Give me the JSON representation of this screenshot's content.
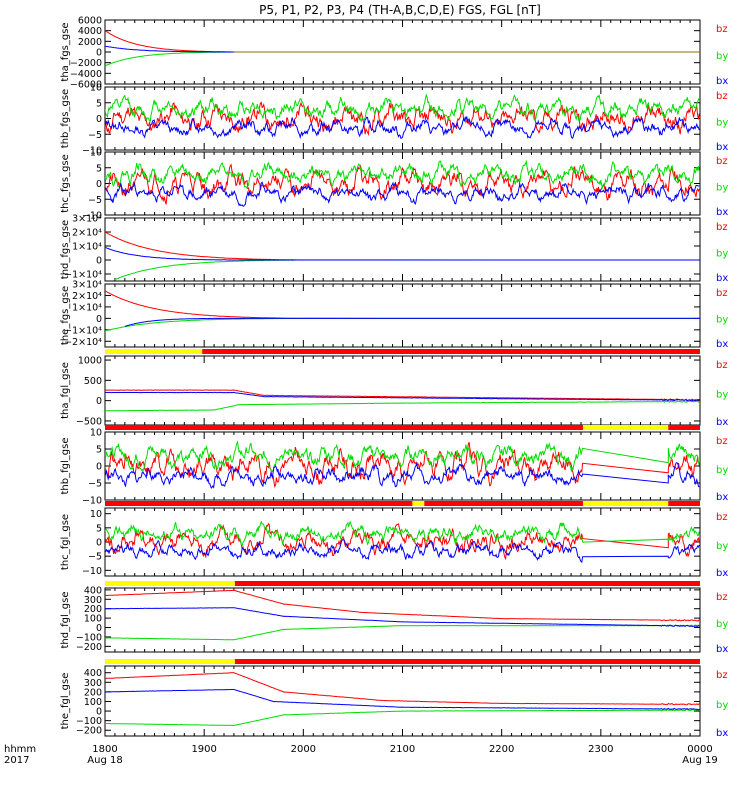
{
  "title": "P5, P1, P2, P3, P4 (TH-A,B,C,D,E) FGS, FGL [nT]",
  "footer": {
    "label_top": "hhmm",
    "label_bottom": "2017",
    "ticks": [
      {
        "t": 0,
        "top": "1800",
        "bottom": "Aug 18"
      },
      {
        "t": 100,
        "top": "1900",
        "bottom": ""
      },
      {
        "t": 200,
        "top": "2000",
        "bottom": ""
      },
      {
        "t": 300,
        "top": "2100",
        "bottom": ""
      },
      {
        "t": 400,
        "top": "2200",
        "bottom": ""
      },
      {
        "t": 500,
        "top": "2300",
        "bottom": ""
      },
      {
        "t": 600,
        "top": "0000",
        "bottom": "Aug 19"
      }
    ]
  },
  "colors": {
    "bx": "#0000ff",
    "by": "#00dd00",
    "bz": "#ff0000",
    "flag_yellow": "#ffff00",
    "flag_red": "#ff0000"
  },
  "legend": [
    "bz",
    "by",
    "bx"
  ],
  "chart_data": [
    {
      "type": "line",
      "id": "tha_fgs_gse",
      "ylabel": "tha_fgs_gse",
      "ylim": [
        -6000,
        6000
      ],
      "ticks": [
        {
          "v": 6000,
          "t": "6000"
        },
        {
          "v": 4000,
          "t": "4000"
        },
        {
          "v": 2000,
          "t": "2000"
        },
        {
          "v": 0,
          "t": "0"
        },
        {
          "v": -2000,
          "t": "−2000"
        },
        {
          "v": -4000,
          "t": "−4000"
        },
        {
          "v": -6000,
          "t": "−6000"
        }
      ],
      "x_range": [
        0,
        600
      ],
      "series": [
        {
          "name": "bz",
          "kind": "decay",
          "x0": 0,
          "x1": 130,
          "start": 4000,
          "end": 0,
          "noise": 20
        },
        {
          "name": "by",
          "kind": "decay",
          "x0": 0,
          "x1": 130,
          "start": -2600,
          "end": 0,
          "noise": 20
        },
        {
          "name": "bx",
          "kind": "decay",
          "x0": 0,
          "x1": 130,
          "start": 1100,
          "end": 0,
          "noise": 20
        },
        {
          "name": "flat",
          "kind": "flat",
          "x0": 130,
          "x1": 600,
          "value": 0
        }
      ]
    },
    {
      "type": "line",
      "id": "thb_fgs_gse",
      "ylabel": "thb_fgs_gse",
      "ylim": [
        -10,
        10
      ],
      "ticks": [
        {
          "v": 10,
          "t": "10"
        },
        {
          "v": 5,
          "t": "5"
        },
        {
          "v": 0,
          "t": "0"
        },
        {
          "v": -5,
          "t": "−5"
        },
        {
          "v": -10,
          "t": "−10"
        }
      ],
      "x_range": [
        0,
        600
      ],
      "series": [
        {
          "name": "bz",
          "kind": "noise",
          "mean": 0,
          "amp": 4,
          "seed": 11
        },
        {
          "name": "by",
          "kind": "noise",
          "mean": 3,
          "amp": 3,
          "seed": 12
        },
        {
          "name": "bx",
          "kind": "noise",
          "mean": -3,
          "amp": 2.5,
          "seed": 13
        }
      ]
    },
    {
      "type": "line",
      "id": "thc_fgs_gse",
      "ylabel": "thc_fgs_gse",
      "ylim": [
        -10,
        10
      ],
      "ticks": [
        {
          "v": 10,
          "t": "10"
        },
        {
          "v": 5,
          "t": "5"
        },
        {
          "v": 0,
          "t": "0"
        },
        {
          "v": -5,
          "t": "−5"
        },
        {
          "v": -10,
          "t": "−10"
        }
      ],
      "x_range": [
        0,
        600
      ],
      "series": [
        {
          "name": "bz",
          "kind": "noise",
          "mean": 0,
          "amp": 4,
          "seed": 21
        },
        {
          "name": "by",
          "kind": "noise",
          "mean": 3,
          "amp": 3,
          "seed": 22
        },
        {
          "name": "bx",
          "kind": "noise",
          "mean": -3,
          "amp": 2.5,
          "seed": 23
        }
      ]
    },
    {
      "type": "line",
      "id": "thd_fgs_gse",
      "ylabel": "thd_fgs_gse",
      "ylim": [
        -15000,
        30000
      ],
      "ticks": [
        {
          "v": 30000,
          "t": "3×10⁴"
        },
        {
          "v": 20000,
          "t": "2×10⁴"
        },
        {
          "v": 10000,
          "t": "1×10⁴"
        },
        {
          "v": 0,
          "t": "0"
        },
        {
          "v": -10000,
          "t": "−1×10⁴"
        }
      ],
      "x_range": [
        0,
        600
      ],
      "series": [
        {
          "name": "bz",
          "kind": "decay",
          "x0": 0,
          "x1": 200,
          "start": 20000,
          "end": 0,
          "noise": 150
        },
        {
          "name": "by",
          "kind": "decay",
          "x0": 10,
          "x1": 200,
          "start": -14000,
          "end": 0,
          "noise": 150
        },
        {
          "name": "bx",
          "kind": "decay",
          "x0": 0,
          "x1": 130,
          "start": 9000,
          "end": 0,
          "noise": 150
        }
      ]
    },
    {
      "type": "line",
      "id": "the_fgs_gse",
      "ylabel": "the_fgs_gse",
      "ylim": [
        -25000,
        30000
      ],
      "ticks": [
        {
          "v": 30000,
          "t": "3×10⁴"
        },
        {
          "v": 20000,
          "t": "2×10⁴"
        },
        {
          "v": 10000,
          "t": "1×10⁴"
        },
        {
          "v": 0,
          "t": "0"
        },
        {
          "v": -10000,
          "t": "−1×10⁴"
        },
        {
          "v": -20000,
          "t": "−2×10⁴"
        }
      ],
      "x_range": [
        0,
        600
      ],
      "series": [
        {
          "name": "bz",
          "kind": "decay",
          "x0": 0,
          "x1": 200,
          "start": 24000,
          "end": 0,
          "noise": 150
        },
        {
          "name": "by",
          "kind": "decay",
          "x0": 0,
          "x1": 200,
          "start": -11000,
          "end": 0,
          "noise": 150
        },
        {
          "name": "bx",
          "kind": "decay",
          "x0": 20,
          "x1": 120,
          "start": -7000,
          "end": 0,
          "noise": 150
        }
      ]
    },
    {
      "type": "line",
      "id": "tha_fgl_gse",
      "ylabel": "tha_fgl_gse",
      "ylim": [
        -600,
        1100
      ],
      "ticks": [
        {
          "v": 1000,
          "t": "1000"
        },
        {
          "v": 500,
          "t": "500"
        },
        {
          "v": 0,
          "t": "0"
        },
        {
          "v": -500,
          "t": "−500"
        }
      ],
      "x_range": [
        0,
        600
      ],
      "flag": [
        {
          "x0": 0,
          "x1": 98,
          "c": "yellow"
        },
        {
          "x0": 98,
          "x1": 600,
          "c": "red"
        }
      ],
      "series": [
        {
          "name": "bz",
          "kind": "step",
          "points": [
            [
              0,
              260
            ],
            [
              130,
              260
            ],
            [
              160,
              130
            ],
            [
              440,
              60
            ],
            [
              600,
              20
            ]
          ],
          "noise": 6
        },
        {
          "name": "by",
          "kind": "step",
          "points": [
            [
              0,
              -250
            ],
            [
              110,
              -230
            ],
            [
              135,
              -100
            ],
            [
              300,
              -60
            ],
            [
              600,
              -20
            ]
          ],
          "noise": 6
        },
        {
          "name": "bx",
          "kind": "step",
          "points": [
            [
              0,
              200
            ],
            [
              130,
              200
            ],
            [
              160,
              100
            ],
            [
              440,
              40
            ],
            [
              600,
              10
            ]
          ],
          "noise": 6
        }
      ]
    },
    {
      "type": "line",
      "id": "thb_fgl_gse",
      "ylabel": "thb_fgl_gse",
      "ylim": [
        -10,
        10
      ],
      "ticks": [
        {
          "v": 10,
          "t": "10"
        },
        {
          "v": 5,
          "t": "5"
        },
        {
          "v": 0,
          "t": "0"
        },
        {
          "v": -5,
          "t": "−5"
        },
        {
          "v": -10,
          "t": "−10"
        }
      ],
      "x_range": [
        0,
        600
      ],
      "flag": [
        {
          "x0": 0,
          "x1": 482,
          "c": "red"
        },
        {
          "x0": 482,
          "x1": 568,
          "c": "yellow"
        },
        {
          "x0": 568,
          "x1": 600,
          "c": "red"
        }
      ],
      "series": [
        {
          "name": "bz",
          "kind": "noise",
          "mean": 0,
          "amp": 4,
          "seed": 31,
          "gap": [
            482,
            568
          ]
        },
        {
          "name": "by",
          "kind": "noise",
          "mean": 3,
          "amp": 3,
          "seed": 32,
          "gap": [
            482,
            568
          ]
        },
        {
          "name": "bx",
          "kind": "noise",
          "mean": -3,
          "amp": 2.5,
          "seed": 33,
          "gap": [
            482,
            568
          ]
        }
      ]
    },
    {
      "type": "line",
      "id": "thc_fgl_gse",
      "ylabel": "thc_fgl_gse",
      "ylim": [
        -12,
        12
      ],
      "ticks": [
        {
          "v": 10,
          "t": "10"
        },
        {
          "v": 5,
          "t": "5"
        },
        {
          "v": 0,
          "t": "0"
        },
        {
          "v": -5,
          "t": "−5"
        },
        {
          "v": -10,
          "t": "−10"
        }
      ],
      "x_range": [
        0,
        600
      ],
      "flag": [
        {
          "x0": 0,
          "x1": 310,
          "c": "red"
        },
        {
          "x0": 310,
          "x1": 322,
          "c": "yellow"
        },
        {
          "x0": 322,
          "x1": 482,
          "c": "red"
        },
        {
          "x0": 482,
          "x1": 568,
          "c": "yellow"
        },
        {
          "x0": 568,
          "x1": 600,
          "c": "red"
        }
      ],
      "series": [
        {
          "name": "bz",
          "kind": "noise",
          "mean": 0,
          "amp": 4,
          "seed": 41,
          "gap": [
            482,
            568
          ]
        },
        {
          "name": "by",
          "kind": "noise",
          "mean": 3,
          "amp": 3,
          "seed": 42,
          "gap": [
            482,
            568
          ]
        },
        {
          "name": "bx",
          "kind": "noise",
          "mean": -3,
          "amp": 2.5,
          "seed": 43,
          "gap": [
            482,
            568
          ]
        }
      ]
    },
    {
      "type": "line",
      "id": "thd_fgl_gse",
      "ylabel": "thd_fgl_gse",
      "ylim": [
        -260,
        420
      ],
      "ticks": [
        {
          "v": 400,
          "t": "400"
        },
        {
          "v": 300,
          "t": "300"
        },
        {
          "v": 200,
          "t": "200"
        },
        {
          "v": 100,
          "t": "100"
        },
        {
          "v": 0,
          "t": "0"
        },
        {
          "v": -100,
          "t": "−100"
        },
        {
          "v": -200,
          "t": "−200"
        }
      ],
      "x_range": [
        0,
        600
      ],
      "flag": [
        {
          "x0": 0,
          "x1": 131,
          "c": "yellow"
        },
        {
          "x0": 131,
          "x1": 600,
          "c": "red"
        }
      ],
      "series": [
        {
          "name": "bz",
          "kind": "step",
          "points": [
            [
              0,
              340
            ],
            [
              130,
              395
            ],
            [
              180,
              250
            ],
            [
              260,
              160
            ],
            [
              400,
              95
            ],
            [
              600,
              75
            ]
          ],
          "noise": 2
        },
        {
          "name": "by",
          "kind": "step",
          "points": [
            [
              0,
              -110
            ],
            [
              130,
              -130
            ],
            [
              180,
              -20
            ],
            [
              300,
              20
            ],
            [
              600,
              20
            ]
          ],
          "noise": 2
        },
        {
          "name": "bx",
          "kind": "step",
          "points": [
            [
              0,
              200
            ],
            [
              130,
              210
            ],
            [
              180,
              120
            ],
            [
              300,
              60
            ],
            [
              600,
              15
            ]
          ],
          "noise": 2
        }
      ]
    },
    {
      "type": "line",
      "id": "the_fgl_gse",
      "ylabel": "the_fgl_gse",
      "ylim": [
        -260,
        470
      ],
      "ticks": [
        {
          "v": 400,
          "t": "400"
        },
        {
          "v": 300,
          "t": "300"
        },
        {
          "v": 200,
          "t": "200"
        },
        {
          "v": 100,
          "t": "100"
        },
        {
          "v": 0,
          "t": "0"
        },
        {
          "v": -100,
          "t": "−100"
        },
        {
          "v": -200,
          "t": "−200"
        }
      ],
      "x_range": [
        0,
        600
      ],
      "flag": [
        {
          "x0": 0,
          "x1": 131,
          "c": "yellow"
        },
        {
          "x0": 131,
          "x1": 600,
          "c": "red"
        }
      ],
      "series": [
        {
          "name": "bz",
          "kind": "step",
          "points": [
            [
              0,
              340
            ],
            [
              130,
              400
            ],
            [
              180,
              200
            ],
            [
              280,
              110
            ],
            [
              400,
              80
            ],
            [
              600,
              70
            ]
          ],
          "noise": 2
        },
        {
          "name": "by",
          "kind": "step",
          "points": [
            [
              0,
              -130
            ],
            [
              130,
              -150
            ],
            [
              180,
              -40
            ],
            [
              300,
              0
            ],
            [
              600,
              10
            ]
          ],
          "noise": 2
        },
        {
          "name": "bx",
          "kind": "step",
          "points": [
            [
              0,
              200
            ],
            [
              130,
              225
            ],
            [
              170,
              100
            ],
            [
              300,
              40
            ],
            [
              600,
              20
            ]
          ],
          "noise": 2
        }
      ]
    }
  ]
}
